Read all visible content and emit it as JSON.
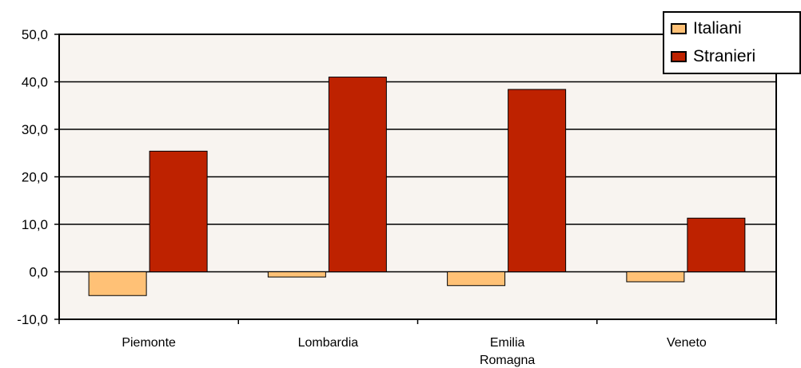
{
  "chart_data": {
    "type": "bar",
    "categories": [
      "Piemonte",
      "Lombardia",
      "Emilia Romagna",
      "Veneto"
    ],
    "category_lines": [
      [
        "Piemonte"
      ],
      [
        "Lombardia"
      ],
      [
        "Emilia",
        "Romagna"
      ],
      [
        "Veneto"
      ]
    ],
    "series": [
      {
        "name": "Italiani",
        "values": [
          -5.0,
          -1.1,
          -2.9,
          -2.1
        ],
        "color": "#FFC176"
      },
      {
        "name": "Stranieri",
        "values": [
          25.4,
          41.0,
          38.4,
          11.3
        ],
        "color": "#BE2200"
      }
    ],
    "ylim": [
      -10,
      50
    ],
    "yticks": [
      -10,
      0,
      10,
      20,
      30,
      40,
      50
    ],
    "ytick_labels": [
      "-10,0",
      "0,0",
      "10,0",
      "20,0",
      "30,0",
      "40,0",
      "50,0"
    ],
    "grid": true,
    "plot_background": "#F8F4F0",
    "legend_position": "top-right",
    "title": "",
    "xlabel": "",
    "ylabel": ""
  }
}
